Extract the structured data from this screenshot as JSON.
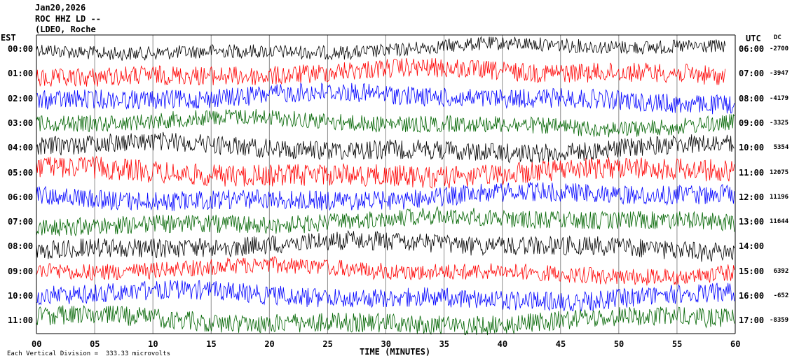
{
  "header": {
    "date": "Jan20,2026",
    "station": "ROC HHZ LD --",
    "network": "(LDEO, Roche"
  },
  "left_label": "EST",
  "right_label": "UTC",
  "dc_label": "DC",
  "footer": {
    "note": "Each Vertical Division =  333.33 microvolts",
    "xlabel": "TIME (MINUTES)"
  },
  "chart_data": {
    "type": "line",
    "xlabel": "TIME (MINUTES)",
    "xlim": [
      0,
      60
    ],
    "x_ticks": [
      "00",
      "05",
      "10",
      "15",
      "20",
      "25",
      "30",
      "35",
      "40",
      "45",
      "50",
      "55",
      "60"
    ],
    "colors": {
      "black": "#000000",
      "red": "#ff0000",
      "blue": "#0000ff",
      "green": "#006400"
    },
    "rows": [
      {
        "est": "00:00",
        "utc": "06:00",
        "dc": "-2700",
        "color": "black"
      },
      {
        "est": "01:00",
        "utc": "07:00",
        "dc": "-3947",
        "color": "red"
      },
      {
        "est": "02:00",
        "utc": "08:00",
        "dc": "-4179",
        "color": "blue"
      },
      {
        "est": "03:00",
        "utc": "09:00",
        "dc": "-3325",
        "color": "green"
      },
      {
        "est": "04:00",
        "utc": "10:00",
        "dc": "5354",
        "color": "black"
      },
      {
        "est": "05:00",
        "utc": "11:00",
        "dc": "12075",
        "color": "red"
      },
      {
        "est": "06:00",
        "utc": "12:00",
        "dc": "11196",
        "color": "blue"
      },
      {
        "est": "07:00",
        "utc": "13:00",
        "dc": "11644",
        "color": "green"
      },
      {
        "est": "08:00",
        "utc": "14:00",
        "dc": "",
        "color": "black"
      },
      {
        "est": "09:00",
        "utc": "15:00",
        "dc": "6392",
        "color": "red"
      },
      {
        "est": "10:00",
        "utc": "16:00",
        "dc": "-652",
        "color": "blue"
      },
      {
        "est": "11:00",
        "utc": "17:00",
        "dc": "-8359",
        "color": "green"
      }
    ]
  }
}
